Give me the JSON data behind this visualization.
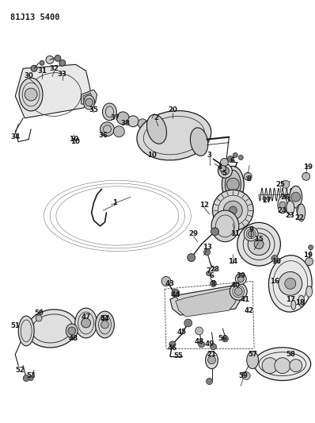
{
  "title": "81J13 5400",
  "bg_color": "#ffffff",
  "line_color": "#1a1a1a",
  "figsize": [
    3.98,
    5.33
  ],
  "dpi": 100,
  "xlim": [
    0,
    398
  ],
  "ylim": [
    0,
    533
  ]
}
